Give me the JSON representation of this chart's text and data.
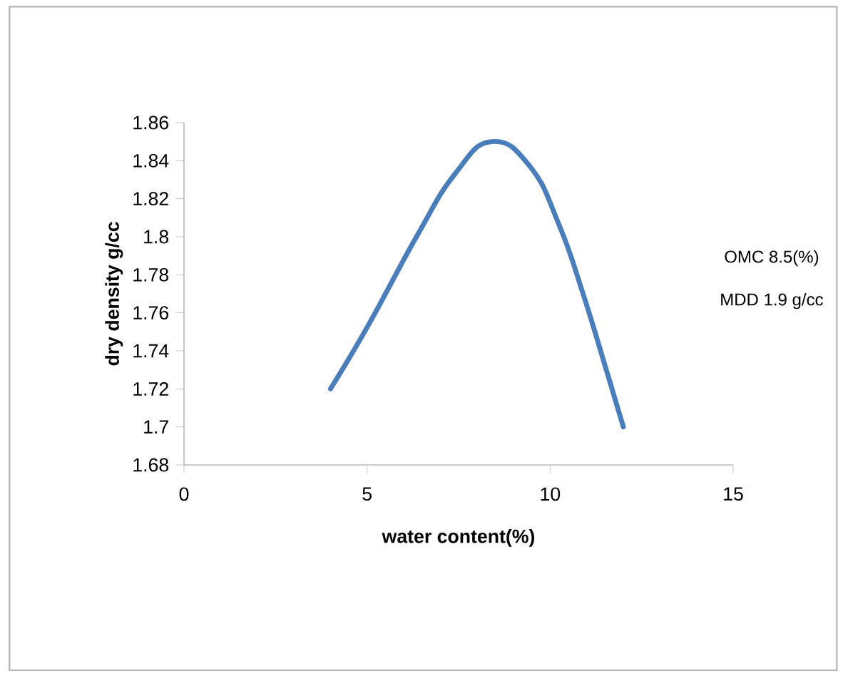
{
  "chart_data": {
    "type": "line",
    "xlabel": "water content(%)",
    "ylabel": "dry density g/cc",
    "x": [
      4,
      5.05,
      6.35,
      7.4,
      8.4,
      9.45,
      10.25,
      10.9,
      11.55,
      12
    ],
    "series": [
      {
        "color": "#4a7ebb",
        "values": [
          1.72,
          1.754,
          1.8,
          1.833,
          1.85,
          1.837,
          1.806,
          1.77,
          1.729,
          1.7
        ]
      }
    ],
    "xlim": [
      0,
      15
    ],
    "xticks": [
      0,
      5,
      10,
      15
    ],
    "ylim": [
      1.68,
      1.86
    ],
    "yticks": [
      1.68,
      1.7,
      1.72,
      1.74,
      1.76,
      1.78,
      1.8,
      1.82,
      1.84,
      1.86
    ],
    "annotations": [
      "OMC 8.5(%)",
      "MDD 1.9 g/cc"
    ],
    "grid": false,
    "marker": "none",
    "line_style": "solid"
  }
}
